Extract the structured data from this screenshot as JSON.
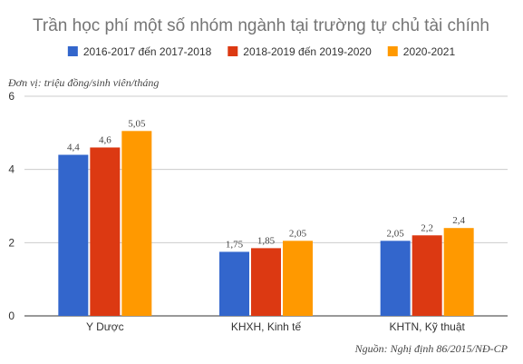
{
  "chart_data": {
    "type": "bar",
    "title": "Trần học phí một số nhóm ngành tại trường tự chủ tài chính",
    "unit_label": "Đơn vị: triệu đồng/sinh viên/tháng",
    "source": "Nguồn: Nghị định 86/2015/NĐ-CP",
    "categories": [
      "Y Dược",
      "KHXH, Kinh tế",
      "KHTN, Kỹ thuật"
    ],
    "series": [
      {
        "name": "2016-2017 đến 2017-2018",
        "color": "#3366cc",
        "values": [
          4.4,
          1.75,
          2.05
        ],
        "labels": [
          "4,4",
          "1,75",
          "2,05"
        ]
      },
      {
        "name": "2018-2019 đến 2019-2020",
        "color": "#dc3912",
        "values": [
          4.6,
          1.85,
          2.2
        ],
        "labels": [
          "4,6",
          "1,85",
          "2,2"
        ]
      },
      {
        "name": "2020-2021",
        "color": "#ff9900",
        "values": [
          5.05,
          2.05,
          2.4
        ],
        "labels": [
          "5,05",
          "2,05",
          "2,4"
        ]
      }
    ],
    "ylim": [
      0,
      6
    ],
    "yticks": [
      "0",
      "2",
      "4",
      "6"
    ],
    "grid": true,
    "legend_position": "top"
  }
}
